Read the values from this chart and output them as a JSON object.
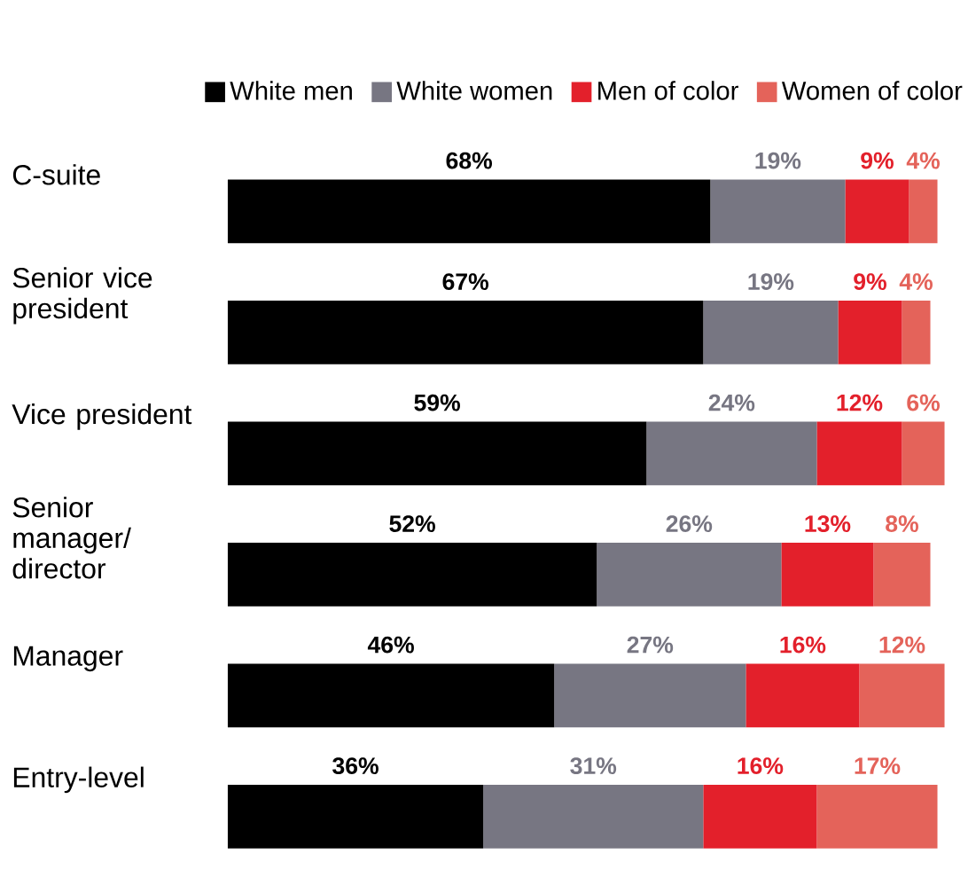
{
  "chart_data": {
    "type": "bar",
    "orientation": "horizontal",
    "stacked": true,
    "legend": "top",
    "categories": [
      "C-suite",
      "Senior vice president",
      "Vice president",
      "Senior manager/ director",
      "Manager",
      "Entry-level"
    ],
    "series": [
      {
        "name": "White men",
        "color": "#000000",
        "values": [
          68,
          67,
          59,
          52,
          46,
          36
        ],
        "value_labels": [
          "68%",
          "67%",
          "59%",
          "52%",
          "46%",
          "36%"
        ]
      },
      {
        "name": "White women",
        "color": "#777682",
        "values": [
          19,
          19,
          24,
          26,
          27,
          31
        ],
        "value_labels": [
          "19%",
          "19%",
          "24%",
          "26%",
          "27%",
          "31%"
        ]
      },
      {
        "name": "Men of color",
        "color": "#e3202b",
        "values": [
          9,
          9,
          12,
          13,
          16,
          16
        ],
        "value_labels": [
          "9%",
          "9%",
          "12%",
          "13%",
          "16%",
          "16%"
        ]
      },
      {
        "name": "Women of color",
        "color": "#e4635a",
        "values": [
          4,
          4,
          6,
          8,
          12,
          17
        ],
        "value_labels": [
          "4%",
          "4%",
          "6%",
          "8%",
          "12%",
          "17%"
        ]
      }
    ]
  }
}
